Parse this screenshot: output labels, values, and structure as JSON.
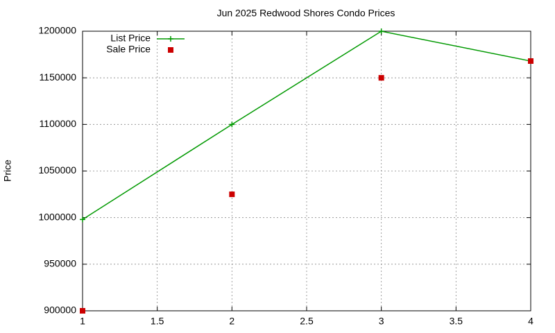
{
  "chart_data": {
    "type": "line",
    "title": "Jun 2025 Redwood Shores Condo Prices",
    "y_label": "Price",
    "x": [
      1,
      2,
      3,
      4
    ],
    "series": [
      {
        "name": "List Price",
        "color": "#009900",
        "style": "linespoints",
        "values": [
          998000,
          1100000,
          1200000,
          1168000
        ]
      },
      {
        "name": "Sale Price",
        "color": "#cc0000",
        "style": "points",
        "values": [
          900000,
          1025000,
          1150000,
          1168000
        ]
      }
    ],
    "xlim": [
      1,
      4
    ],
    "xticks": [
      1,
      1.5,
      2,
      2.5,
      3,
      3.5,
      4
    ],
    "ylim": [
      900000,
      1200000
    ],
    "yticks": [
      900000,
      950000,
      1000000,
      1050000,
      1100000,
      1150000,
      1200000
    ],
    "grid": true,
    "legend": "top-left"
  }
}
